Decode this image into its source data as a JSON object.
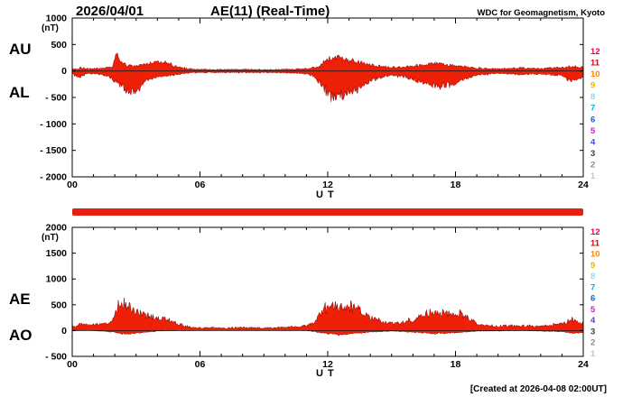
{
  "header": {
    "date": "2026/04/01",
    "title": "AE(11) (Real-Time)",
    "source": "WDC for Geomagnetism, Kyoto"
  },
  "footer": {
    "created": "[Created at 2026-04-08 02:00UT]"
  },
  "colors": {
    "fill": "#ee2008",
    "outline": "#8b0000",
    "zero_line": "#1a1a1a",
    "station_bar": "#e62010",
    "axis": "#000000"
  },
  "legend": {
    "values": [
      "12",
      "11",
      "10",
      "9",
      "8",
      "7",
      "6",
      "5",
      "4",
      "3",
      "2",
      "1"
    ],
    "colors": [
      "#e6005f",
      "#e60000",
      "#ff8800",
      "#f0b400",
      "#8fd8f0",
      "#00b4dc",
      "#0a64dc",
      "#cc22cc",
      "#5544d8",
      "#404040",
      "#8c8c8c",
      "#c4c4c4"
    ]
  },
  "chart_data": [
    {
      "type": "area",
      "title": "AU and AL auroral electrojet indices",
      "ylabel": "(nT)",
      "xlabel": "U T",
      "left_labels": [
        "AU",
        "AL"
      ],
      "ylim": [
        -2000,
        1000
      ],
      "yticks": {
        "values": [
          1000,
          500,
          0,
          -500,
          -1000,
          -1500,
          -2000
        ],
        "labels": [
          "1000",
          "500",
          "0",
          "- 500",
          "- 1000",
          "- 1500",
          "- 2000"
        ]
      },
      "xlim": [
        0,
        24
      ],
      "xticks": {
        "values": [
          0,
          6,
          12,
          18,
          24
        ],
        "labels": [
          "00",
          "06",
          "12",
          "18",
          "24"
        ]
      },
      "series": [
        {
          "name": "AU",
          "points": [
            [
              0,
              30
            ],
            [
              0.4,
              60
            ],
            [
              0.8,
              40
            ],
            [
              1.2,
              50
            ],
            [
              1.6,
              60
            ],
            [
              1.9,
              90
            ],
            [
              2.1,
              310
            ],
            [
              2.3,
              140
            ],
            [
              2.6,
              110
            ],
            [
              3,
              90
            ],
            [
              3.4,
              140
            ],
            [
              3.8,
              170
            ],
            [
              4.2,
              175
            ],
            [
              4.6,
              130
            ],
            [
              5,
              70
            ],
            [
              5.5,
              40
            ],
            [
              6,
              30
            ],
            [
              7,
              25
            ],
            [
              8,
              30
            ],
            [
              9,
              25
            ],
            [
              10,
              30
            ],
            [
              11,
              45
            ],
            [
              11.5,
              70
            ],
            [
              11.8,
              160
            ],
            [
              12.1,
              230
            ],
            [
              12.5,
              250
            ],
            [
              12.9,
              210
            ],
            [
              13.3,
              190
            ],
            [
              13.7,
              150
            ],
            [
              14.1,
              110
            ],
            [
              14.5,
              85
            ],
            [
              15,
              65
            ],
            [
              15.5,
              75
            ],
            [
              16,
              95
            ],
            [
              16.5,
              125
            ],
            [
              17,
              150
            ],
            [
              17.4,
              135
            ],
            [
              17.8,
              115
            ],
            [
              18.2,
              95
            ],
            [
              18.6,
              75
            ],
            [
              19,
              55
            ],
            [
              20,
              40
            ],
            [
              21,
              55
            ],
            [
              22,
              45
            ],
            [
              23,
              65
            ],
            [
              23.5,
              85
            ],
            [
              24,
              65
            ]
          ]
        },
        {
          "name": "AL",
          "points": [
            [
              0,
              -40
            ],
            [
              0.3,
              -150
            ],
            [
              0.6,
              -70
            ],
            [
              1,
              -55
            ],
            [
              1.4,
              -70
            ],
            [
              1.8,
              -120
            ],
            [
              2.1,
              -220
            ],
            [
              2.4,
              -330
            ],
            [
              2.7,
              -400
            ],
            [
              3,
              -370
            ],
            [
              3.3,
              -250
            ],
            [
              3.6,
              -160
            ],
            [
              4,
              -120
            ],
            [
              4.5,
              -90
            ],
            [
              5,
              -60
            ],
            [
              5.5,
              -40
            ],
            [
              6,
              -30
            ],
            [
              7,
              -28
            ],
            [
              8,
              -32
            ],
            [
              9,
              -28
            ],
            [
              10,
              -32
            ],
            [
              11,
              -55
            ],
            [
              11.4,
              -120
            ],
            [
              11.7,
              -300
            ],
            [
              12,
              -430
            ],
            [
              12.3,
              -500
            ],
            [
              12.7,
              -460
            ],
            [
              13,
              -420
            ],
            [
              13.4,
              -330
            ],
            [
              13.8,
              -230
            ],
            [
              14.2,
              -160
            ],
            [
              14.6,
              -110
            ],
            [
              15,
              -85
            ],
            [
              15.5,
              -105
            ],
            [
              16,
              -150
            ],
            [
              16.4,
              -210
            ],
            [
              16.8,
              -260
            ],
            [
              17.2,
              -295
            ],
            [
              17.6,
              -290
            ],
            [
              18,
              -240
            ],
            [
              18.4,
              -160
            ],
            [
              18.8,
              -100
            ],
            [
              19.2,
              -70
            ],
            [
              20,
              -45
            ],
            [
              21,
              -65
            ],
            [
              22,
              -55
            ],
            [
              23,
              -85
            ],
            [
              23.4,
              -190
            ],
            [
              23.7,
              -170
            ],
            [
              24,
              -120
            ]
          ]
        }
      ]
    },
    {
      "type": "area",
      "title": "AE and AO auroral electrojet indices",
      "ylabel": "(nT)",
      "xlabel": "U T",
      "left_labels": [
        "AE",
        "AO"
      ],
      "ylim": [
        -500,
        2000
      ],
      "yticks": {
        "values": [
          2000,
          1500,
          1000,
          500,
          0,
          -500
        ],
        "labels": [
          "2000",
          "1500",
          "1000",
          "500",
          "0",
          "- 500"
        ]
      },
      "xlim": [
        0,
        24
      ],
      "xticks": {
        "values": [
          0,
          6,
          12,
          18,
          24
        ],
        "labels": [
          "00",
          "06",
          "12",
          "18",
          "24"
        ]
      },
      "series": [
        {
          "name": "AE",
          "points": [
            [
              0,
              75
            ],
            [
              0.4,
              120
            ],
            [
              0.8,
              95
            ],
            [
              1.2,
              115
            ],
            [
              1.6,
              140
            ],
            [
              1.9,
              220
            ],
            [
              2.1,
              420
            ],
            [
              2.35,
              600
            ],
            [
              2.6,
              480
            ],
            [
              2.9,
              380
            ],
            [
              3.2,
              310
            ],
            [
              3.6,
              280
            ],
            [
              4,
              230
            ],
            [
              4.3,
              250
            ],
            [
              4.7,
              180
            ],
            [
              5,
              120
            ],
            [
              5.5,
              70
            ],
            [
              6,
              55
            ],
            [
              7,
              50
            ],
            [
              8,
              60
            ],
            [
              9,
              50
            ],
            [
              10,
              60
            ],
            [
              11,
              90
            ],
            [
              11.4,
              160
            ],
            [
              11.7,
              380
            ],
            [
              12,
              470
            ],
            [
              12.4,
              500
            ],
            [
              12.8,
              430
            ],
            [
              13.2,
              470
            ],
            [
              13.6,
              360
            ],
            [
              14,
              260
            ],
            [
              14.4,
              190
            ],
            [
              14.8,
              150
            ],
            [
              15.2,
              140
            ],
            [
              15.6,
              170
            ],
            [
              16,
              210
            ],
            [
              16.4,
              290
            ],
            [
              16.8,
              340
            ],
            [
              17.2,
              360
            ],
            [
              17.6,
              330
            ],
            [
              18,
              300
            ],
            [
              18.3,
              330
            ],
            [
              18.7,
              220
            ],
            [
              19.1,
              120
            ],
            [
              19.5,
              95
            ],
            [
              20,
              85
            ],
            [
              21,
              95
            ],
            [
              22,
              85
            ],
            [
              23,
              130
            ],
            [
              23.5,
              210
            ],
            [
              24,
              160
            ]
          ]
        },
        {
          "name": "AO",
          "points": [
            [
              0,
              10
            ],
            [
              1,
              0
            ],
            [
              2,
              -30
            ],
            [
              2.5,
              -70
            ],
            [
              3,
              -50
            ],
            [
              4,
              -10
            ],
            [
              5,
              0
            ],
            [
              8,
              5
            ],
            [
              11,
              0
            ],
            [
              12,
              -60
            ],
            [
              12.5,
              -80
            ],
            [
              13,
              -60
            ],
            [
              14,
              -30
            ],
            [
              15,
              -10
            ],
            [
              16,
              -30
            ],
            [
              17,
              -60
            ],
            [
              18,
              -40
            ],
            [
              19,
              -10
            ],
            [
              21,
              0
            ],
            [
              23,
              -20
            ],
            [
              23.5,
              -50
            ],
            [
              24,
              -30
            ]
          ]
        }
      ]
    }
  ]
}
